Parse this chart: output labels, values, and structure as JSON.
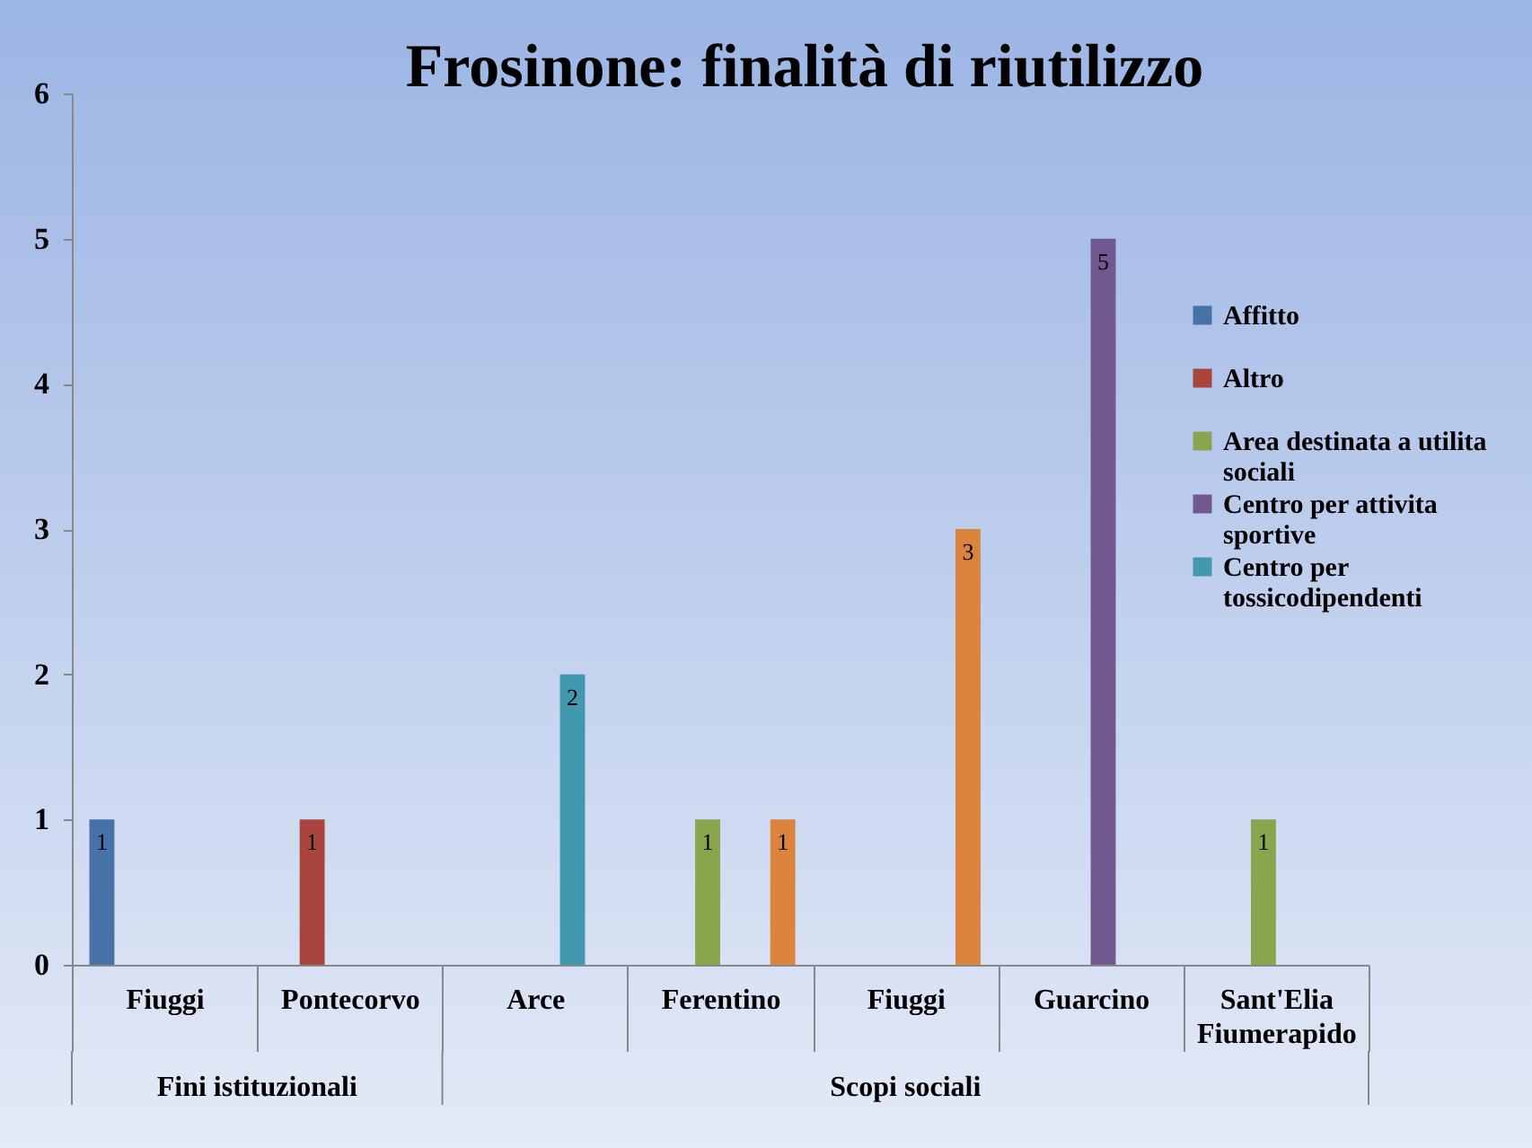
{
  "chart_data": {
    "type": "bar",
    "title": "Frosinone: finalità di riutilizzo",
    "categories": [
      "Fiuggi",
      "Pontecorvo",
      "Arce",
      "Ferentino",
      "Fiuggi",
      "Guarcino",
      "Sant'Elia Fiumerapido"
    ],
    "series": [
      {
        "name": "Affitto",
        "color": "#4672a8",
        "values": [
          1,
          null,
          null,
          null,
          null,
          null,
          null
        ]
      },
      {
        "name": "Altro",
        "color": "#a9443f",
        "values": [
          null,
          1,
          null,
          null,
          null,
          null,
          null
        ]
      },
      {
        "name": "Area destinata a utilita sociali",
        "color": "#89a54e",
        "values": [
          null,
          null,
          null,
          1,
          null,
          null,
          1
        ]
      },
      {
        "name": "Centro per attivita sportive",
        "color": "#71588f",
        "values": [
          null,
          null,
          null,
          null,
          null,
          5,
          null
        ]
      },
      {
        "name": "Centro per tossicodipendenti",
        "color": "#4198af",
        "values": [
          null,
          null,
          2,
          null,
          null,
          null,
          null
        ]
      },
      {
        "color": "#db843d",
        "values": [
          null,
          null,
          null,
          1,
          3,
          null,
          null
        ]
      }
    ],
    "ylim": [
      0,
      6
    ],
    "yticks": [
      0,
      1,
      2,
      3,
      4,
      5,
      6
    ],
    "annotations": [
      "Fini istituzionali",
      "Scopi sociali"
    ],
    "data_labels": true,
    "legend": "right"
  }
}
